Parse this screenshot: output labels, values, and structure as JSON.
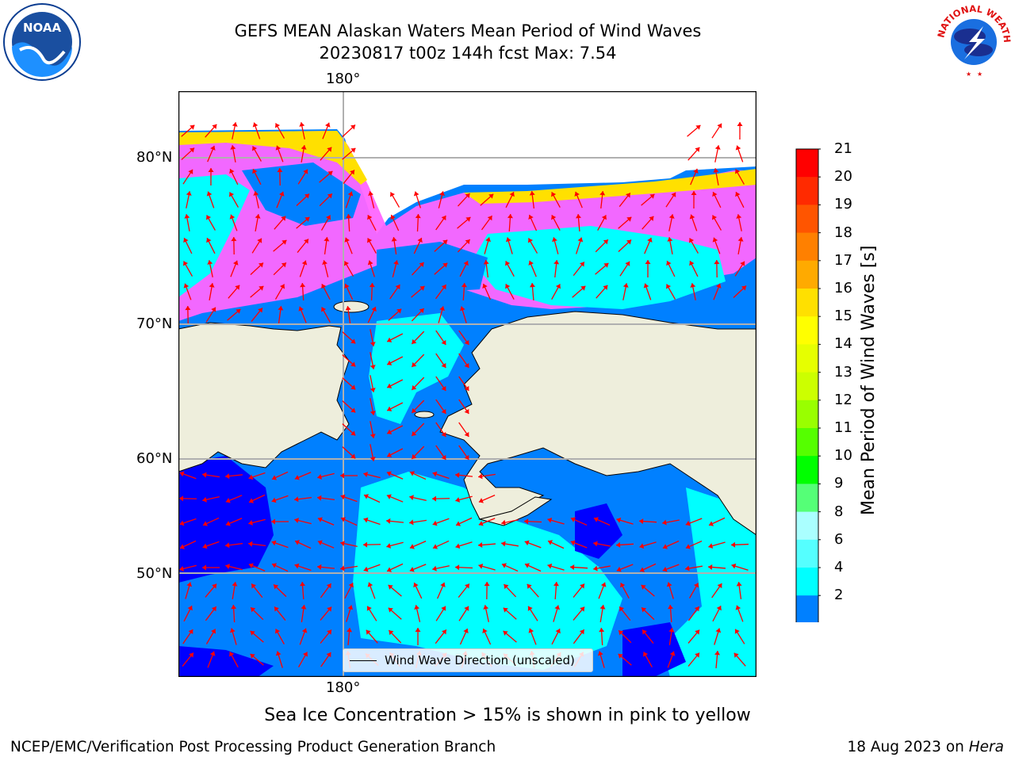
{
  "header": {
    "title_line1": "GEFS MEAN Alaskan Waters Mean Period of Wind Waves",
    "title_line2": "20230817 t00z 144h fcst   Max: 7.54"
  },
  "logos": {
    "left": {
      "name": "noaa-logo",
      "text": "NOAA"
    },
    "right": {
      "name": "nws-logo",
      "text": "NATIONAL WEATHER SERVICE"
    }
  },
  "map": {
    "lon_label_top": "180°",
    "lon_label_bottom": "180°",
    "lat_labels": [
      "80°N",
      "70°N",
      "60°N",
      "50°N"
    ],
    "legend_text": "Wind Wave Direction (unscaled)",
    "colors": {
      "land": "#eeeedc",
      "ocean_low": "#0050ff",
      "ocean_mid": "#00ffff",
      "ice_pink": "#ff66ff",
      "ice_yellow": "#ffe000",
      "arrow": "#ff0000"
    }
  },
  "colorbar": {
    "label": "Mean Period of Wind Waves [s]",
    "ticks": [
      "21",
      "20",
      "19",
      "18",
      "17",
      "16",
      "15",
      "14",
      "13",
      "12",
      "11",
      "10",
      "9",
      "8",
      "6",
      "4",
      "2"
    ],
    "colors": [
      "#ff0000",
      "#ff2a00",
      "#ff5500",
      "#ff8000",
      "#ffaa00",
      "#ffe000",
      "#ffff00",
      "#e6ff00",
      "#ccff00",
      "#99ff00",
      "#55ff00",
      "#00ff00",
      "#55ff77",
      "#aaffff",
      "#55ffff",
      "#00ffff",
      "#0080ff"
    ],
    "under_color": "#0000ff"
  },
  "footer": {
    "note": "Sea Ice Concentration > 15% is shown in pink to yellow",
    "left": "NCEP/EMC/Verification Post Processing Product Generation Branch",
    "right_prefix": "18 Aug 2023 on ",
    "right_machine": "Hera"
  }
}
